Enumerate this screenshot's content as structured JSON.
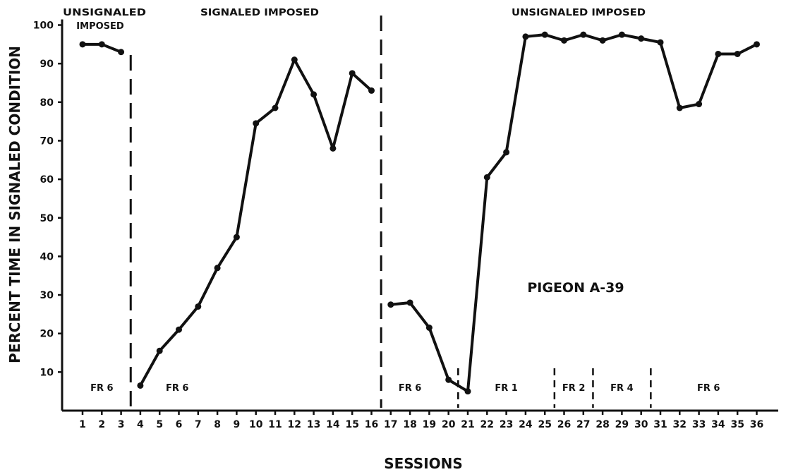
{
  "chart_data": {
    "type": "line",
    "xlabel": "SESSIONS",
    "ylabel": "PERCENT TIME IN SIGNALED CONDITION",
    "ylim": [
      0,
      100
    ],
    "xlim": [
      1,
      36
    ],
    "y_ticks": [
      10,
      20,
      30,
      40,
      50,
      60,
      70,
      80,
      90,
      100
    ],
    "x_ticks": [
      1,
      2,
      3,
      4,
      5,
      6,
      7,
      8,
      9,
      10,
      11,
      12,
      13,
      14,
      15,
      16,
      17,
      18,
      19,
      20,
      21,
      22,
      23,
      24,
      25,
      26,
      27,
      28,
      29,
      30,
      31,
      32,
      33,
      34,
      35,
      36
    ],
    "annotation": "PIGEON A-39",
    "phases": [
      {
        "label": "UNSIGNALED IMPOSED",
        "from": 1,
        "to": 3
      },
      {
        "label": "SIGNALED IMPOSED",
        "from": 4,
        "to": 16
      },
      {
        "label": "UNSIGNALED IMPOSED",
        "from": 17,
        "to": 36
      }
    ],
    "schedules": [
      {
        "label": "FR 6",
        "from": 1,
        "to": 3
      },
      {
        "label": "FR 6",
        "from": 4,
        "to": 16
      },
      {
        "label": "FR 6",
        "from": 17,
        "to": 20
      },
      {
        "label": "FR 1",
        "from": 21,
        "to": 25
      },
      {
        "label": "FR 2",
        "from": 26,
        "to": 27
      },
      {
        "label": "FR 4",
        "from": 28,
        "to": 30
      },
      {
        "label": "FR 6",
        "from": 31,
        "to": 36
      }
    ],
    "series": [
      {
        "x": [
          1,
          2,
          3
        ],
        "values": [
          95,
          95,
          93
        ]
      },
      {
        "x": [
          4,
          5,
          6,
          7,
          8,
          9,
          10,
          11,
          12,
          13,
          14,
          15,
          16
        ],
        "values": [
          6.5,
          15.5,
          21,
          27,
          37,
          45,
          74.5,
          78.5,
          91,
          82,
          68,
          87.5,
          83
        ]
      },
      {
        "x": [
          17,
          18,
          19,
          20,
          21,
          22,
          23,
          24,
          25,
          26,
          27,
          28,
          29,
          30,
          31,
          32,
          33,
          34,
          35,
          36
        ],
        "values": [
          27.5,
          28,
          21.5,
          8,
          5,
          60.5,
          67,
          97,
          97.5,
          96,
          97.5,
          96,
          97.5,
          96.5,
          95.5,
          78.5,
          79.5,
          92.5,
          92.5,
          95
        ]
      }
    ]
  }
}
